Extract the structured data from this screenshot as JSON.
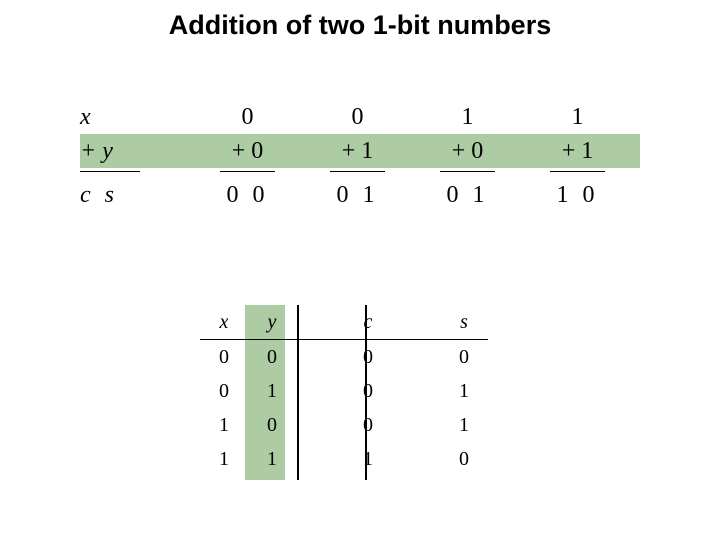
{
  "title": "Addition of two 1-bit numbers",
  "highlight_color": "#adcca4",
  "addition": {
    "labels": {
      "x": "x",
      "plus_y": "+ y",
      "cs": "c  s"
    },
    "columns": [
      {
        "x": "0",
        "plus_y": "+ 0",
        "cs": "0 0"
      },
      {
        "x": "0",
        "plus_y": "+ 1",
        "cs": "0 1"
      },
      {
        "x": "1",
        "plus_y": "+ 0",
        "cs": "0 1"
      },
      {
        "x": "1",
        "plus_y": "+ 1",
        "cs": "1 0"
      }
    ]
  },
  "truth_table": {
    "headers": {
      "x": "x",
      "y": "y",
      "c": "c",
      "s": "s"
    },
    "rows": [
      {
        "x": "0",
        "y": "0",
        "c": "0",
        "s": "0"
      },
      {
        "x": "0",
        "y": "1",
        "c": "0",
        "s": "1"
      },
      {
        "x": "1",
        "y": "0",
        "c": "0",
        "s": "1"
      },
      {
        "x": "1",
        "y": "1",
        "c": "1",
        "s": "0"
      }
    ]
  }
}
